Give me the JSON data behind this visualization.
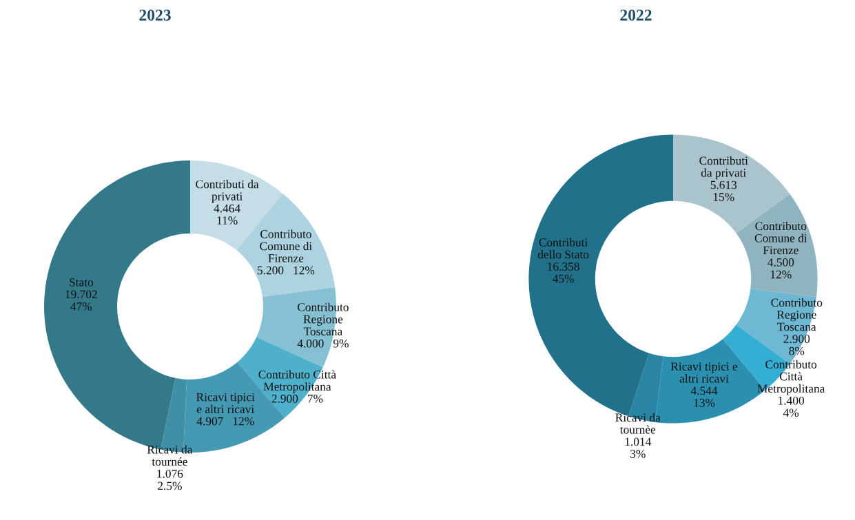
{
  "chart_data": [
    {
      "type": "donut",
      "title": "2023",
      "categories": [
        "Contributi da\nprivati",
        "Contributo\nComune di\nFirenze",
        "Contributo\nRegione\nToscana",
        "Contributo Città\nMetropolitana",
        "Ricavi tipici\ne altri ricavi",
        "Ricavi da\ntournée",
        "Stato"
      ],
      "values": [
        11,
        12,
        9,
        7,
        12,
        2.5,
        47
      ],
      "value_labels": [
        "4.464\n11%",
        "5.200   12%",
        "4.000   9%",
        "2.900   7%",
        "4.907   12%",
        "1.076\n2.5%",
        "19.702\n47%"
      ],
      "colors": [
        "#c5dde6",
        "#aed3e0",
        "#86c1d3",
        "#4fb0cc",
        "#4599b3",
        "#3f8fa6",
        "#34798a"
      ]
    },
    {
      "type": "donut",
      "title": "2022",
      "categories": [
        "Contributi\nda privati",
        "Contributo\nComune di\nFirenze",
        "Contributo\nRegione\nToscana",
        "Contributo\nCittà\nMetropolitana",
        "Ricavi tipici e\naltri ricavi",
        "Ricavi da\ntournèe",
        "Contributi\ndello Stato"
      ],
      "values": [
        15,
        12,
        8,
        4,
        13,
        3,
        45
      ],
      "value_labels": [
        "5.613\n15%",
        "4.500\n12%",
        "2.900\n8%",
        "1.400\n4%",
        "4.544\n13%",
        "1.014\n3%",
        "16.358\n45%"
      ],
      "colors": [
        "#a9c4cc",
        "#8fb4c0",
        "#6fb8d4",
        "#35aed4",
        "#2b8fb0",
        "#2a84a3",
        "#22718a"
      ]
    }
  ]
}
